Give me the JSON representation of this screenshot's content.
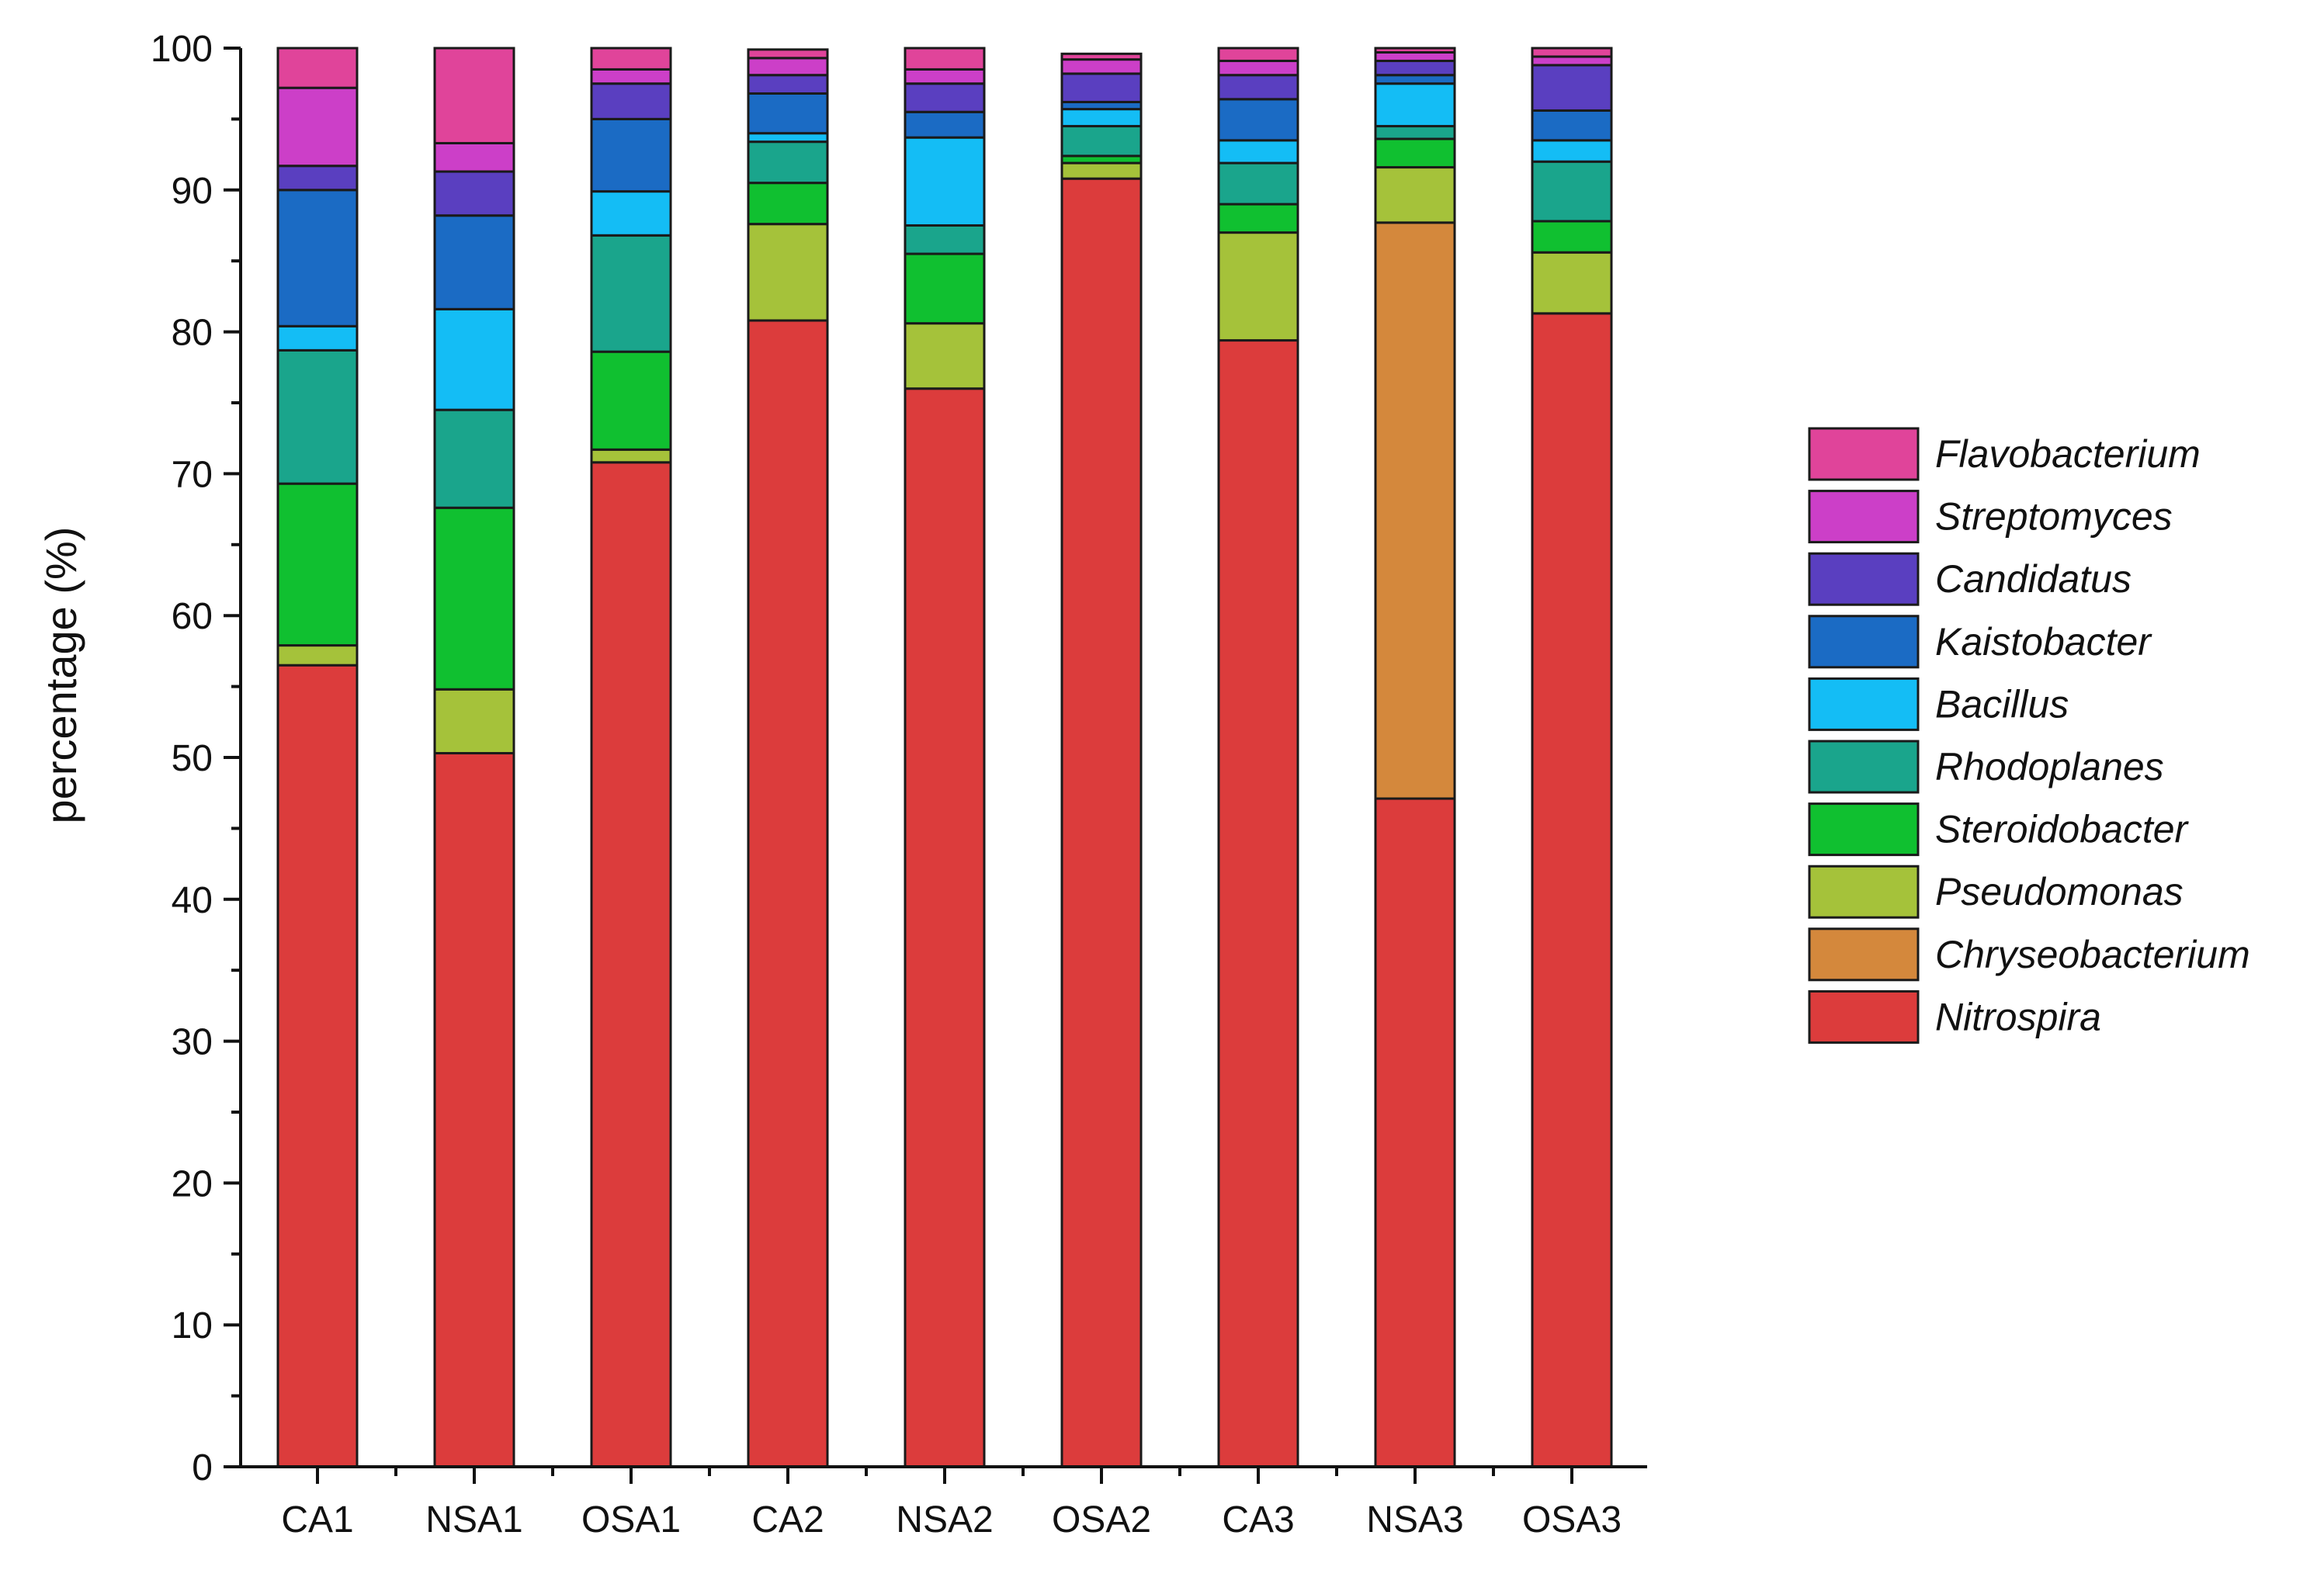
{
  "chart_data": {
    "type": "bar",
    "stacked": true,
    "title": "",
    "xlabel": "",
    "ylabel": "percentage (%)",
    "ylim": [
      0,
      100
    ],
    "yticks": [
      0,
      10,
      20,
      30,
      40,
      50,
      60,
      70,
      80,
      90,
      100
    ],
    "grid": false,
    "legend_position": "right",
    "categories": [
      "CA1",
      "NSA1",
      "OSA1",
      "CA2",
      "NSA2",
      "OSA2",
      "CA3",
      "NSA3",
      "OSA3"
    ],
    "series": [
      {
        "name": "Nitrospira",
        "color": "#dc3c3c",
        "values": [
          56.5,
          50.3,
          70.8,
          80.8,
          76.0,
          90.8,
          79.4,
          47.1,
          81.3
        ]
      },
      {
        "name": "Chryseobacterium",
        "color": "#d4883c",
        "values": [
          0,
          0,
          0,
          0,
          0,
          0,
          0,
          40.6,
          0
        ]
      },
      {
        "name": "Pseudomonas",
        "color": "#a5c23a",
        "values": [
          1.4,
          4.5,
          0.9,
          6.8,
          4.6,
          1.1,
          7.6,
          3.9,
          4.3
        ]
      },
      {
        "name": "Steroidobacter",
        "color": "#10c030",
        "values": [
          11.4,
          12.8,
          6.9,
          2.9,
          4.9,
          0.5,
          2.0,
          2.0,
          2.2
        ]
      },
      {
        "name": "Rhodoplanes",
        "color": "#1aa58c",
        "values": [
          9.4,
          6.9,
          8.2,
          2.9,
          2.0,
          2.1,
          2.9,
          0.9,
          4.2
        ]
      },
      {
        "name": "Bacillus",
        "color": "#14bdf5",
        "values": [
          1.7,
          7.1,
          3.1,
          0.6,
          6.2,
          1.2,
          1.6,
          3.0,
          1.5
        ]
      },
      {
        "name": "Kaistobacter",
        "color": "#1b6bc4",
        "values": [
          9.6,
          6.6,
          5.1,
          2.8,
          1.8,
          0.5,
          2.9,
          0.6,
          2.1
        ]
      },
      {
        "name": "Candidatus",
        "color": "#5a3fc0",
        "values": [
          1.7,
          3.1,
          2.5,
          1.3,
          2.0,
          2.0,
          1.7,
          1.0,
          3.2
        ]
      },
      {
        "name": "Streptomyces",
        "color": "#cc3fc8",
        "values": [
          5.5,
          2.0,
          1.0,
          1.2,
          1.0,
          1.0,
          1.0,
          0.6,
          0.6
        ]
      },
      {
        "name": "Flavobacterium",
        "color": "#e0449a",
        "values": [
          2.8,
          6.7,
          1.5,
          0.6,
          1.5,
          0.4,
          0.9,
          0.3,
          0.6
        ]
      }
    ]
  }
}
